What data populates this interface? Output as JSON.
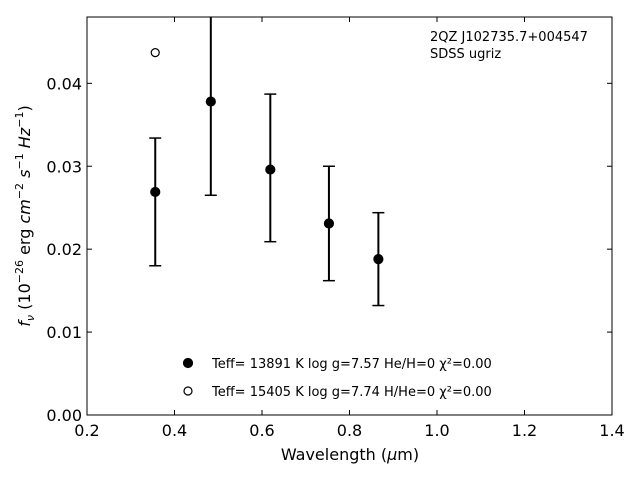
{
  "chart_data": {
    "type": "scatter",
    "title": "",
    "xlabel": "Wavelength (μm)",
    "ylabel": "fν (10⁻²⁶ erg cm⁻² s⁻¹ Hz⁻¹)",
    "xlim": [
      0.2,
      1.4
    ],
    "ylim": [
      0.0,
      0.048
    ],
    "xticks": [
      "0.2",
      "0.4",
      "0.6",
      "0.8",
      "1.0",
      "1.2",
      "1.4"
    ],
    "yticks": [
      "0.00",
      "0.01",
      "0.02",
      "0.03",
      "0.04"
    ],
    "annotation_lines": [
      "2QZ J102735.7+004547",
      "SDSS ugriz"
    ],
    "legend_position": "lower-center",
    "grid": false,
    "series": [
      {
        "name": "Teff= 13891 K  log g=7.57  He/H=0  χ²=0.00",
        "marker": "filled-circle",
        "color": "#000000",
        "x": [
          0.356,
          0.483,
          0.619,
          0.753,
          0.866
        ],
        "y": [
          0.0269,
          0.0378,
          0.0296,
          0.0231,
          0.0188
        ],
        "yerr_low": [
          0.018,
          0.0265,
          0.0209,
          0.0162,
          0.0132
        ],
        "yerr_high": [
          0.0334,
          0.049,
          0.0387,
          0.03,
          0.0244
        ]
      },
      {
        "name": "Teff= 15405 K  log g=7.74  H/He=0  χ²=0.00",
        "marker": "open-circle",
        "color": "#000000",
        "x": [
          0.356
        ],
        "y": [
          0.0437
        ]
      }
    ]
  }
}
